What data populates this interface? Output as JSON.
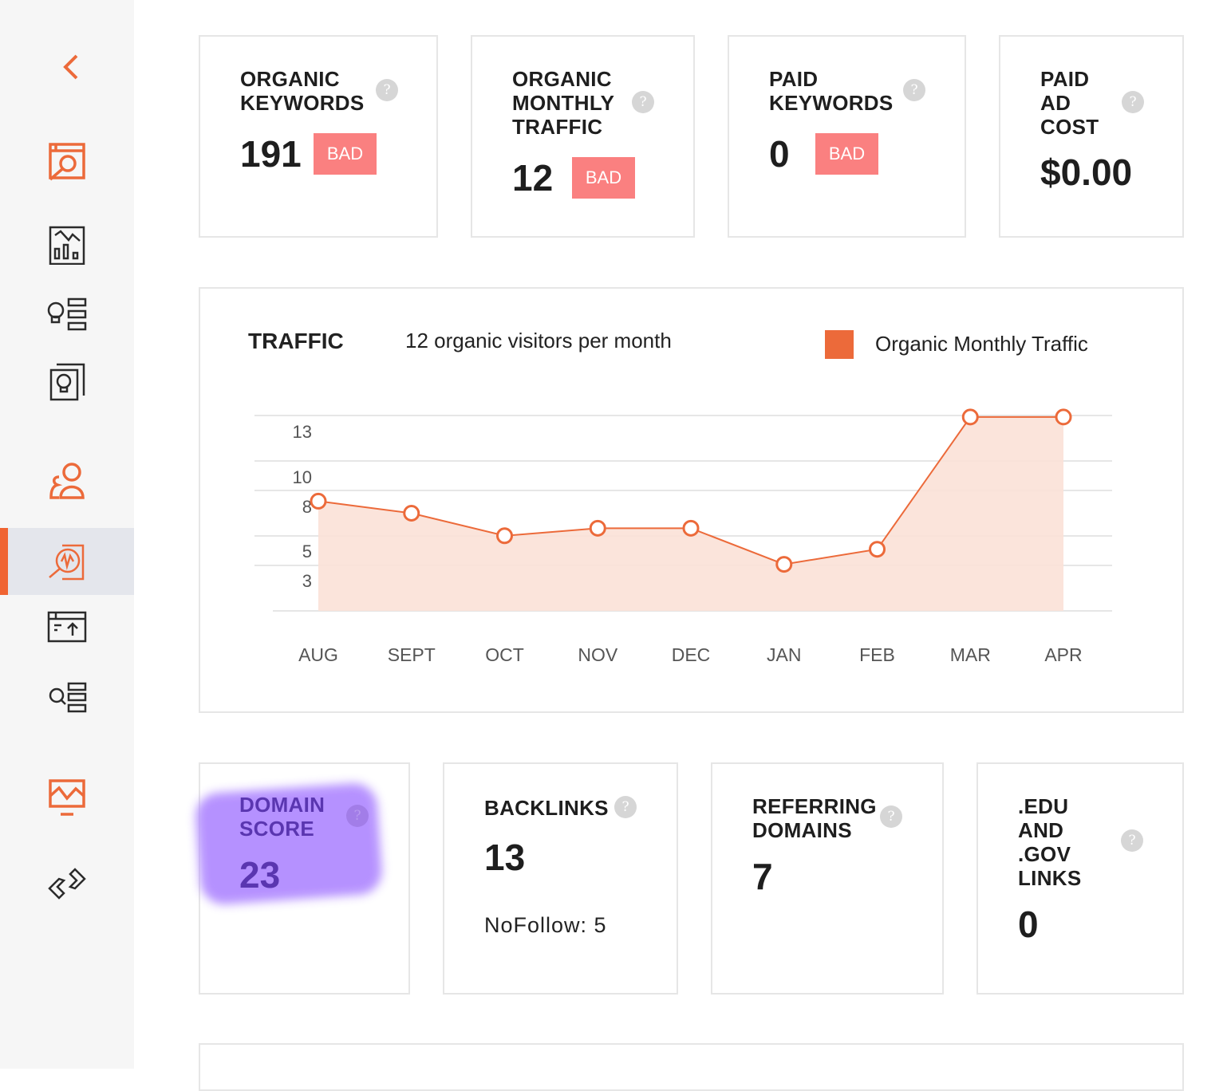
{
  "sidebar": {
    "collapse_icon": "chevron-left-icon",
    "items": [
      {
        "icon": "site-search-icon",
        "color": "#ec6a3a",
        "active": false
      },
      {
        "icon": "analytics-chart-icon",
        "color": "#2b2b2b",
        "active": false
      },
      {
        "icon": "idea-list-icon",
        "color": "#2b2b2b",
        "active": false
      },
      {
        "icon": "idea-card-icon",
        "color": "#2b2b2b",
        "active": false
      },
      {
        "icon": "users-icon",
        "color": "#ec6a3a",
        "active": false
      },
      {
        "icon": "traffic-analyzer-icon",
        "color": "#ec6a3a",
        "active": true
      },
      {
        "icon": "site-upload-icon",
        "color": "#2b2b2b",
        "active": false
      },
      {
        "icon": "search-list-icon",
        "color": "#2b2b2b",
        "active": false
      },
      {
        "icon": "monitor-chart-icon",
        "color": "#ec6a3a",
        "active": false
      },
      {
        "icon": "link-icon",
        "color": "#2b2b2b",
        "active": false
      }
    ]
  },
  "top_cards": [
    {
      "title": [
        "ORGANIC",
        "KEYWORDS"
      ],
      "value": "191",
      "badge": "BAD"
    },
    {
      "title": [
        "ORGANIC",
        "MONTHLY",
        "TRAFFIC"
      ],
      "value": "12",
      "badge": "BAD"
    },
    {
      "title": [
        "PAID",
        "KEYWORDS"
      ],
      "value": "0",
      "badge": "BAD"
    },
    {
      "title": [
        "PAID",
        "AD",
        "COST"
      ],
      "value": "$0.00"
    }
  ],
  "help_glyph": "?",
  "traffic": {
    "title": "TRAFFIC",
    "subtitle": "12 organic visitors per month",
    "legend": "Organic Monthly Traffic"
  },
  "chart_data": {
    "type": "area",
    "categories": [
      "AUG",
      "SEPT",
      "OCT",
      "NOV",
      "DEC",
      "JAN",
      "FEB",
      "MAR",
      "APR"
    ],
    "series": [
      {
        "name": "Organic Monthly Traffic",
        "values": [
          7.3,
          6.5,
          5,
          5.5,
          5.5,
          3.1,
          4.1,
          12.9,
          12.9
        ],
        "color": "#ec6a3a"
      }
    ],
    "y_ticks": [
      "13",
      "10",
      "8",
      "5",
      "3"
    ],
    "ylim": [
      0,
      13
    ],
    "grid": true,
    "legend_position": "top-right"
  },
  "bottom_cards": [
    {
      "title": [
        "DOMAIN",
        "SCORE"
      ],
      "value": "23",
      "highlighted": true,
      "highlight_color": "#b28cff"
    },
    {
      "title": [
        "BACKLINKS"
      ],
      "value": "13",
      "sub": "NoFollow: 5"
    },
    {
      "title": [
        "REFERRING",
        "DOMAINS"
      ],
      "value": "7"
    },
    {
      "title": [
        ".EDU",
        "AND",
        ".GOV",
        "LINKS"
      ],
      "value": "0"
    }
  ],
  "colors": {
    "accent": "#ec6a3a",
    "bad": "#fa8080",
    "active_bg": "#e4e6ec"
  }
}
